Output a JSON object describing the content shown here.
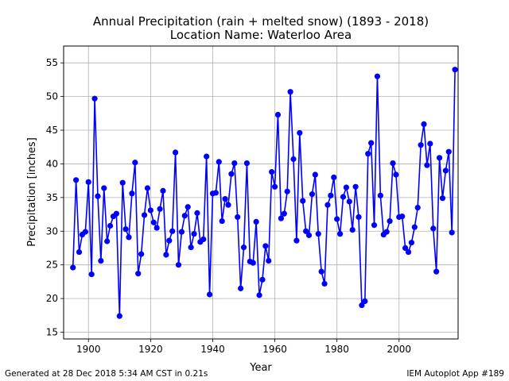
{
  "chart_data": {
    "type": "line",
    "title": "Annual Precipitation (rain + melted snow) (1893 - 2018)",
    "subtitle": "Location Name: Waterloo Area",
    "xlabel": "Year",
    "ylabel": "Precipitation [inches]",
    "xlim": [
      1892,
      2019
    ],
    "ylim": [
      14,
      57.5
    ],
    "xticks": [
      1900,
      1920,
      1940,
      1960,
      1980,
      2000
    ],
    "yticks": [
      15,
      20,
      25,
      30,
      35,
      40,
      45,
      50,
      55
    ],
    "grid": true,
    "color": "#0000ff",
    "x": [
      1895,
      1896,
      1897,
      1898,
      1899,
      1900,
      1901,
      1902,
      1903,
      1904,
      1905,
      1906,
      1907,
      1908,
      1909,
      1910,
      1911,
      1912,
      1913,
      1914,
      1915,
      1916,
      1917,
      1918,
      1919,
      1920,
      1921,
      1922,
      1923,
      1924,
      1925,
      1926,
      1927,
      1928,
      1929,
      1930,
      1931,
      1932,
      1933,
      1934,
      1935,
      1936,
      1937,
      1938,
      1939,
      1940,
      1941,
      1942,
      1943,
      1944,
      1945,
      1946,
      1947,
      1948,
      1949,
      1950,
      1951,
      1952,
      1953,
      1954,
      1955,
      1956,
      1957,
      1958,
      1959,
      1960,
      1961,
      1962,
      1963,
      1964,
      1965,
      1966,
      1967,
      1968,
      1969,
      1970,
      1971,
      1972,
      1973,
      1974,
      1975,
      1976,
      1977,
      1978,
      1979,
      1980,
      1981,
      1982,
      1983,
      1984,
      1985,
      1986,
      1987,
      1988,
      1989,
      1990,
      1991,
      1992,
      1993,
      1994,
      1995,
      1996,
      1997,
      1998,
      1999,
      2000,
      2001,
      2002,
      2003,
      2004,
      2005,
      2006,
      2007,
      2008,
      2009,
      2010,
      2011,
      2012,
      2013,
      2014,
      2015,
      2016,
      2017,
      2018
    ],
    "y": [
      24.6,
      37.6,
      26.9,
      29.5,
      29.9,
      37.3,
      23.6,
      49.7,
      35.2,
      25.6,
      36.4,
      28.5,
      30.8,
      32.2,
      32.6,
      17.4,
      37.2,
      30.3,
      29.1,
      35.6,
      40.2,
      23.7,
      26.6,
      32.4,
      36.4,
      33.1,
      31.3,
      30.5,
      33.3,
      36.0,
      26.5,
      28.6,
      30.0,
      41.7,
      25.0,
      29.9,
      32.3,
      33.6,
      27.6,
      29.6,
      32.7,
      28.4,
      28.8,
      41.1,
      20.6,
      35.6,
      35.7,
      40.3,
      31.5,
      34.8,
      33.9,
      38.5,
      40.1,
      32.1,
      21.5,
      27.6,
      40.1,
      25.5,
      25.3,
      31.4,
      20.5,
      22.8,
      27.8,
      25.6,
      38.8,
      36.6,
      47.3,
      31.9,
      32.6,
      35.9,
      50.7,
      40.7,
      28.6,
      44.6,
      34.5,
      30.0,
      29.4,
      35.5,
      38.4,
      29.6,
      24.0,
      22.2,
      33.9,
      35.3,
      38.0,
      31.8,
      29.6,
      35.1,
      36.5,
      34.4,
      30.2,
      36.6,
      32.1,
      19.0,
      19.6,
      41.5,
      43.1,
      30.9,
      53.0,
      35.3,
      29.5,
      29.9,
      31.5,
      40.1,
      38.4,
      32.1,
      32.2,
      27.5,
      26.9,
      28.3,
      30.6,
      33.5,
      42.8,
      45.9,
      39.8,
      43.0,
      30.4,
      24.0,
      40.9,
      34.9,
      39.0,
      41.8,
      29.8,
      54.0
    ]
  },
  "footer": {
    "left": "Generated at 28 Dec 2018 5:34 AM CST in 0.21s",
    "right": "IEM Autoplot App #189"
  }
}
